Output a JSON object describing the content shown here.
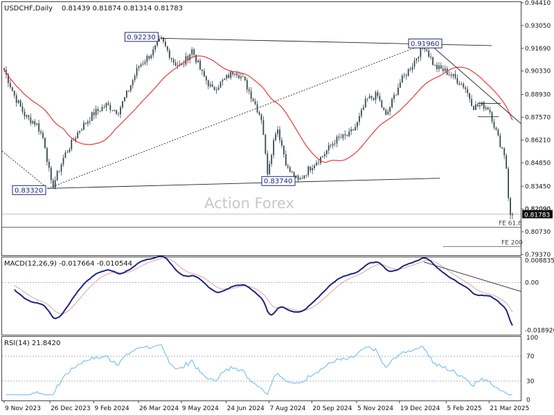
{
  "header": {
    "symbol": "USDCHF,Daily",
    "ohlc": "0.81439 0.81874 0.81314 0.81783"
  },
  "watermark": "Action Forex",
  "colors": {
    "candle": "#37474f",
    "ma": "#e53935",
    "trendline": "#222222",
    "macd": "#1a237e",
    "signal": "#e0a0a0",
    "rsi": "#64b5f6",
    "price_box": "#1a237e",
    "watermark": "#c8c8c8"
  },
  "chart_data": [
    {
      "type": "candlestick",
      "title": "USDCHF,Daily",
      "ylim": [
        0.7937,
        0.9441
      ],
      "y_ticks": [
        "0.94410",
        "0.93050",
        "0.91690",
        "0.90330",
        "0.88930",
        "0.87570",
        "0.86210",
        "0.84850",
        "0.83450",
        "0.82090",
        "0.80730",
        "0.79370"
      ],
      "x_ticks": [
        "9 Nov 2023",
        "26 Dec 2023",
        "9 Feb 2024",
        "26 Mar 2024",
        "9 May 2024",
        "24 Jun 2024",
        "7 Aug 2024",
        "20 Sep 2024",
        "5 Nov 2024",
        "19 Dec 2024",
        "5 Feb 2025",
        "21 Mar 2025"
      ],
      "close_path": [
        {
          "date": "2023-11-09",
          "close": 0.904
        },
        {
          "date": "2023-11-20",
          "close": 0.888
        },
        {
          "date": "2023-12-01",
          "close": 0.876
        },
        {
          "date": "2023-12-12",
          "close": 0.872
        },
        {
          "date": "2023-12-20",
          "close": 0.862
        },
        {
          "date": "2023-12-28",
          "close": 0.8332
        },
        {
          "date": "2024-01-10",
          "close": 0.853
        },
        {
          "date": "2024-01-25",
          "close": 0.868
        },
        {
          "date": "2024-02-09",
          "close": 0.878
        },
        {
          "date": "2024-02-22",
          "close": 0.883
        },
        {
          "date": "2024-03-05",
          "close": 0.879
        },
        {
          "date": "2024-03-15",
          "close": 0.891
        },
        {
          "date": "2024-03-26",
          "close": 0.906
        },
        {
          "date": "2024-04-10",
          "close": 0.915
        },
        {
          "date": "2024-04-18",
          "close": 0.9223
        },
        {
          "date": "2024-05-02",
          "close": 0.908
        },
        {
          "date": "2024-05-09",
          "close": 0.906
        },
        {
          "date": "2024-05-20",
          "close": 0.916
        },
        {
          "date": "2024-05-30",
          "close": 0.902
        },
        {
          "date": "2024-06-10",
          "close": 0.892
        },
        {
          "date": "2024-06-24",
          "close": 0.899
        },
        {
          "date": "2024-07-03",
          "close": 0.904
        },
        {
          "date": "2024-07-12",
          "close": 0.898
        },
        {
          "date": "2024-07-22",
          "close": 0.886
        },
        {
          "date": "2024-07-31",
          "close": 0.874
        },
        {
          "date": "2024-08-05",
          "close": 0.842
        },
        {
          "date": "2024-08-15",
          "close": 0.871
        },
        {
          "date": "2024-08-26",
          "close": 0.845
        },
        {
          "date": "2024-09-06",
          "close": 0.8374
        },
        {
          "date": "2024-09-20",
          "close": 0.847
        },
        {
          "date": "2024-09-30",
          "close": 0.852
        },
        {
          "date": "2024-10-14",
          "close": 0.862
        },
        {
          "date": "2024-10-28",
          "close": 0.865
        },
        {
          "date": "2024-11-05",
          "close": 0.871
        },
        {
          "date": "2024-11-15",
          "close": 0.886
        },
        {
          "date": "2024-11-26",
          "close": 0.889
        },
        {
          "date": "2024-12-05",
          "close": 0.876
        },
        {
          "date": "2024-12-19",
          "close": 0.896
        },
        {
          "date": "2025-01-02",
          "close": 0.908
        },
        {
          "date": "2025-01-13",
          "close": 0.9196
        },
        {
          "date": "2025-01-24",
          "close": 0.906
        },
        {
          "date": "2025-02-05",
          "close": 0.903
        },
        {
          "date": "2025-02-14",
          "close": 0.899
        },
        {
          "date": "2025-02-24",
          "close": 0.894
        },
        {
          "date": "2025-03-05",
          "close": 0.882
        },
        {
          "date": "2025-03-14",
          "close": 0.883
        },
        {
          "date": "2025-03-21",
          "close": 0.881
        },
        {
          "date": "2025-03-31",
          "close": 0.862
        },
        {
          "date": "2025-04-07",
          "close": 0.852
        },
        {
          "date": "2025-04-11",
          "close": 0.817
        },
        {
          "date": "2025-04-14",
          "close": 0.8178
        }
      ],
      "annotations": [
        {
          "label": "0.92230",
          "value": 0.9223
        },
        {
          "label": "0.91960",
          "value": 0.9196
        },
        {
          "label": "0.83320",
          "value": 0.8332
        },
        {
          "label": "0.83740",
          "value": 0.8374
        },
        {
          "label": "FE 61.8",
          "value": 0.81
        },
        {
          "label": "FE 200",
          "value": 0.7985
        }
      ],
      "current_price": "0.81783",
      "grid_line_label": "0.82090"
    },
    {
      "type": "line",
      "title": "MACD(12,26,9) -0.017664 -0.010544",
      "ylim": [
        -0.0205,
        0.0098
      ],
      "y_ticks": [
        "0.008835",
        "0.00",
        "-0.018926"
      ]
    },
    {
      "type": "line",
      "title": "RSI(14) 21.8420",
      "ylim": [
        0,
        100
      ],
      "y_ticks": [
        "100",
        "70",
        "30",
        "0"
      ],
      "levels": [
        70,
        30
      ]
    }
  ]
}
